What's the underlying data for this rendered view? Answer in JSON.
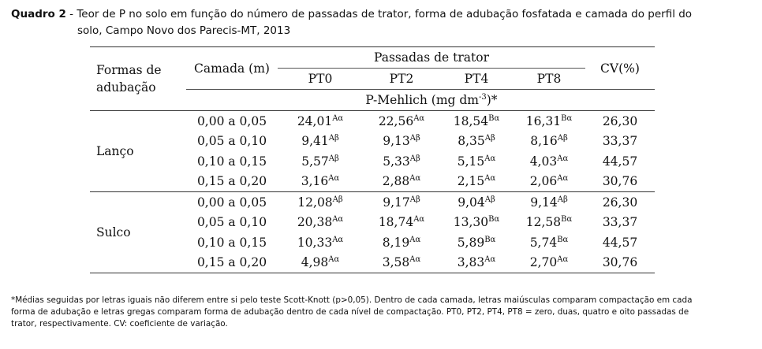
{
  "caption": {
    "lead": "Quadro 2",
    "text_line1": " - Teor de P no solo em função do número de passadas de trator, forma de adubação fosfatada e camada do perfil do",
    "text_line2": "solo, Campo Novo dos Parecis-MT, 2013"
  },
  "table": {
    "headers": {
      "formas_line1": "Formas de",
      "formas_line2": "adubação",
      "camada": "Camada (m)",
      "passadas": "Passadas de trator",
      "pt0": "PT0",
      "pt2": "PT2",
      "pt4": "PT4",
      "pt8": "PT8",
      "cv": "CV(%)",
      "unit_prefix": "P-Mehlich (mg dm",
      "unit_exp": "-3",
      "unit_suffix": ")*"
    },
    "groups": [
      {
        "name": "Lanço",
        "rows": [
          {
            "camada": "0,00 a 0,05",
            "pt0": "24,01",
            "pt0_s": "Aα",
            "pt2": "22,56",
            "pt2_s": "Aα",
            "pt4": "18,54",
            "pt4_s": "Bα",
            "pt8": "16,31",
            "pt8_s": "Bα",
            "cv": "26,30"
          },
          {
            "camada": "0,05 a 0,10",
            "pt0": "9,41",
            "pt0_s": "Aβ",
            "pt2": "9,13",
            "pt2_s": "Aβ",
            "pt4": "8,35",
            "pt4_s": "Aβ",
            "pt8": "8,16",
            "pt8_s": "Aβ",
            "cv": "33,37"
          },
          {
            "camada": "0,10 a 0,15",
            "pt0": "5,57",
            "pt0_s": "Aβ",
            "pt2": "5,33",
            "pt2_s": "Aβ",
            "pt4": "5,15",
            "pt4_s": "Aα",
            "pt8": "4,03",
            "pt8_s": "Aα",
            "cv": "44,57"
          },
          {
            "camada": "0,15 a 0,20",
            "pt0": "3,16",
            "pt0_s": "Aα",
            "pt2": "2,88",
            "pt2_s": "Aα",
            "pt4": "2,15",
            "pt4_s": "Aα",
            "pt8": "2,06",
            "pt8_s": "Aα",
            "cv": "30,76"
          }
        ]
      },
      {
        "name": "Sulco",
        "rows": [
          {
            "camada": "0,00 a 0,05",
            "pt0": "12,08",
            "pt0_s": "Aβ",
            "pt2": "9,17",
            "pt2_s": "Aβ",
            "pt4": "9,04",
            "pt4_s": "Aβ",
            "pt8": "9,14",
            "pt8_s": "Aβ",
            "cv": "26,30"
          },
          {
            "camada": "0,05 a 0,10",
            "pt0": "20,38",
            "pt0_s": "Aα",
            "pt2": "18,74",
            "pt2_s": "Aα",
            "pt4": "13,30",
            "pt4_s": "Bα",
            "pt8": "12,58",
            "pt8_s": "Bα",
            "cv": "33,37"
          },
          {
            "camada": "0,10 a 0,15",
            "pt0": "10,33",
            "pt0_s": "Aα",
            "pt2": "8,19",
            "pt2_s": "Aα",
            "pt4": "5,89",
            "pt4_s": "Bα",
            "pt8": "5,74",
            "pt8_s": "Bα",
            "cv": "44,57"
          },
          {
            "camada": "0,15 a 0,20",
            "pt0": "4,98",
            "pt0_s": "Aα",
            "pt2": "3,58",
            "pt2_s": "Aα",
            "pt4": "3,83",
            "pt4_s": "Aα",
            "pt8": "2,70",
            "pt8_s": "Aα",
            "cv": "30,76"
          }
        ]
      }
    ]
  },
  "footnote": {
    "line1": "*Médias seguidas por letras iguais não diferem entre si pelo teste Scott-Knott (p>0,05). Dentro de cada camada, letras maiúsculas comparam compactação em cada",
    "line2": "forma de adubação e letras gregas comparam forma de adubação dentro de cada nível de compactação. PT0, PT2, PT4, PT8 = zero, duas, quatro e oito passadas de",
    "line3": "trator, respectivamente. CV: coeficiente de variação."
  }
}
